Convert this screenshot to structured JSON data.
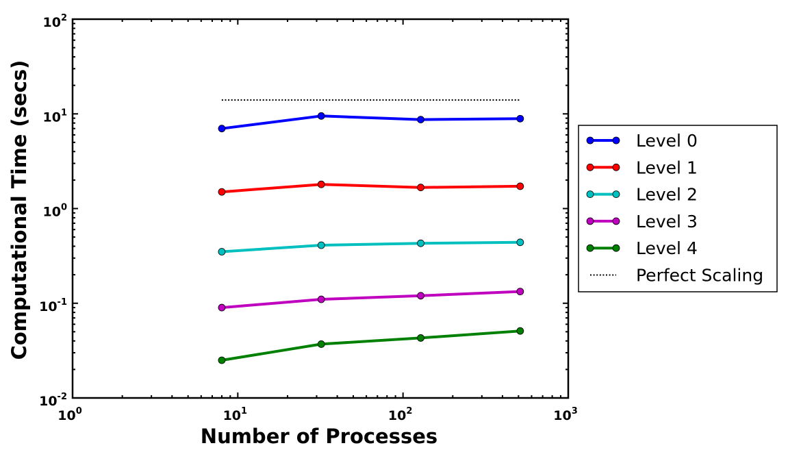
{
  "chart_data": {
    "type": "line",
    "xscale": "log",
    "yscale": "log",
    "xlabel": "Number of Processes",
    "ylabel": "Computational Time (secs)",
    "xlim": [
      1,
      1000
    ],
    "ylim": [
      0.01,
      100
    ],
    "xticks": [
      {
        "base": "10",
        "exp": "0",
        "value": 1
      },
      {
        "base": "10",
        "exp": "1",
        "value": 10
      },
      {
        "base": "10",
        "exp": "2",
        "value": 100
      },
      {
        "base": "10",
        "exp": "3",
        "value": 1000
      }
    ],
    "yticks": [
      {
        "base": "10",
        "exp": "-2",
        "value": 0.01
      },
      {
        "base": "10",
        "exp": "-1",
        "value": 0.1
      },
      {
        "base": "10",
        "exp": "0",
        "value": 1
      },
      {
        "base": "10",
        "exp": "1",
        "value": 10
      },
      {
        "base": "10",
        "exp": "2",
        "value": 100
      }
    ],
    "x": [
      8,
      32,
      128,
      512
    ],
    "series": [
      {
        "name": "Level 0",
        "color": "#0000ff",
        "marker": "circle",
        "values": [
          7.0,
          9.5,
          8.7,
          8.9
        ]
      },
      {
        "name": "Level 1",
        "color": "#ff0000",
        "marker": "circle",
        "values": [
          1.5,
          1.8,
          1.67,
          1.72
        ]
      },
      {
        "name": "Level 2",
        "color": "#00bfbf",
        "marker": "circle",
        "values": [
          0.35,
          0.41,
          0.43,
          0.44
        ]
      },
      {
        "name": "Level 3",
        "color": "#bf00bf",
        "marker": "circle",
        "values": [
          0.09,
          0.11,
          0.12,
          0.133
        ]
      },
      {
        "name": "Level 4",
        "color": "#008000",
        "marker": "circle",
        "values": [
          0.025,
          0.037,
          0.043,
          0.051
        ]
      },
      {
        "name": "Perfect Scaling",
        "color": "#000000",
        "style": "dotted",
        "marker": "none",
        "values": [
          14,
          14,
          14,
          14
        ]
      }
    ],
    "legend": {
      "placement": "outside-right"
    },
    "grid": false
  }
}
